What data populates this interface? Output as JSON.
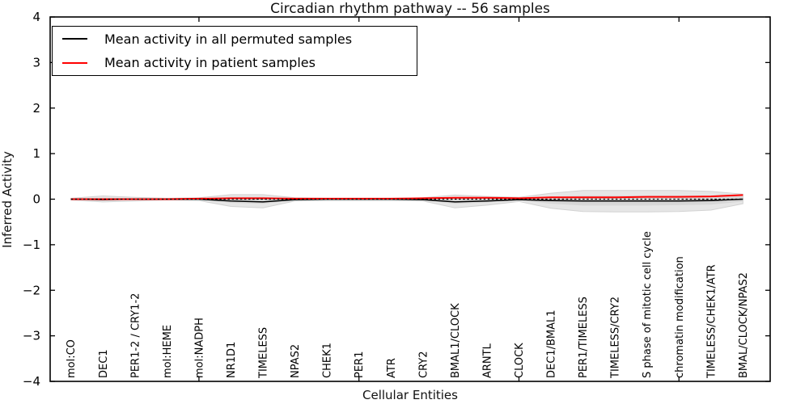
{
  "chart": {
    "title": "Circadian rhythm pathway -- 56 samples",
    "xlabel": "Cellular Entities",
    "ylabel": "Inferred Activity"
  },
  "chart_data": {
    "type": "line",
    "title": "Circadian rhythm pathway -- 56 samples",
    "xlabel": "Cellular Entities",
    "ylabel": "Inferred Activity",
    "ylim": [
      -4,
      4
    ],
    "xlim": [
      0.35,
      22.85
    ],
    "grid": false,
    "legend_position": "upper left",
    "yticks": [
      {
        "value": 4,
        "label": "4"
      },
      {
        "value": 3,
        "label": "3"
      },
      {
        "value": 2,
        "label": "2"
      },
      {
        "value": 1,
        "label": "1"
      },
      {
        "value": 0,
        "label": "0"
      },
      {
        "value": -1,
        "label": "−1"
      },
      {
        "value": -2,
        "label": "−2"
      },
      {
        "value": -3,
        "label": "−3"
      },
      {
        "value": -4,
        "label": "−4"
      }
    ],
    "xtick_values": [
      5,
      10,
      15,
      20
    ],
    "categories": [
      "mol:CO",
      "DEC1",
      "PER1-2 / CRY1-2",
      "mol:HEME",
      "mol:NADPH",
      "NR1D1",
      "TIMELESS",
      "NPAS2",
      "CHEK1",
      "PER1",
      "ATR",
      "CRY2",
      "BMAL1/CLOCK",
      "ARNTL",
      "CLOCK",
      "DEC1/BMAL1",
      "PER1/TIMELESS",
      "TIMELESS/CRY2",
      "S phase of mitotic cell cycle",
      "chromatin modification",
      "TIMELESS/CHEK1/ATR",
      "BMAL/CLOCK/NPAS2"
    ],
    "bands": [
      {
        "name": "permuted-activity-range-outer",
        "fill": "#e6e6e6",
        "edge": "#d2d2d2",
        "upper": [
          0.02,
          0.07,
          0.04,
          0.02,
          0.03,
          0.1,
          0.1,
          0.03,
          0.02,
          0.02,
          0.02,
          0.03,
          0.09,
          0.06,
          0.04,
          0.13,
          0.19,
          0.19,
          0.19,
          0.19,
          0.17,
          0.11
        ],
        "lower": [
          -0.02,
          -0.06,
          -0.04,
          -0.02,
          -0.03,
          -0.16,
          -0.19,
          -0.04,
          -0.03,
          -0.03,
          -0.03,
          -0.04,
          -0.19,
          -0.13,
          -0.05,
          -0.2,
          -0.27,
          -0.28,
          -0.28,
          -0.27,
          -0.24,
          -0.1
        ]
      },
      {
        "name": "permuted-activity-range-inner",
        "fill": "#d7d7d7",
        "edge": "none",
        "upper": [
          0.01,
          0.03,
          0.02,
          0.01,
          0.01,
          0.05,
          0.05,
          0.02,
          0.01,
          0.01,
          0.01,
          0.02,
          0.04,
          0.03,
          0.02,
          0.06,
          0.08,
          0.08,
          0.08,
          0.08,
          0.07,
          0.06
        ],
        "lower": [
          -0.01,
          -0.03,
          -0.02,
          -0.01,
          -0.01,
          -0.08,
          -0.1,
          -0.02,
          -0.01,
          -0.01,
          -0.01,
          -0.02,
          -0.1,
          -0.07,
          -0.02,
          -0.1,
          -0.14,
          -0.14,
          -0.14,
          -0.13,
          -0.12,
          -0.05
        ]
      }
    ],
    "zero_line": {
      "y": 0,
      "color": "#000000",
      "style": "dashed"
    },
    "series": [
      {
        "name": "Mean activity in all permuted samples",
        "color": "#000000",
        "width": 1.6,
        "values": [
          0.0,
          -0.01,
          0.0,
          0.0,
          0.0,
          -0.04,
          -0.06,
          -0.01,
          0.0,
          0.0,
          0.0,
          -0.01,
          -0.06,
          -0.04,
          -0.01,
          -0.03,
          -0.04,
          -0.04,
          -0.04,
          -0.04,
          -0.03,
          0.0
        ]
      },
      {
        "name": "Mean activity in patient samples",
        "color": "#ff0000",
        "width": 2.0,
        "values": [
          0.0,
          0.0,
          0.0,
          0.0,
          0.01,
          0.02,
          0.02,
          0.01,
          0.01,
          0.01,
          0.01,
          0.02,
          0.03,
          0.03,
          0.02,
          0.04,
          0.04,
          0.04,
          0.05,
          0.05,
          0.06,
          0.09
        ]
      }
    ],
    "legend": [
      {
        "label": "Mean activity in all permuted samples",
        "color": "#000000"
      },
      {
        "label": "Mean activity in patient samples",
        "color": "#ff0000"
      }
    ]
  }
}
